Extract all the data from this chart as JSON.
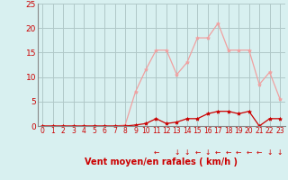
{
  "hours": [
    0,
    1,
    2,
    3,
    4,
    5,
    6,
    7,
    8,
    9,
    10,
    11,
    12,
    13,
    14,
    15,
    16,
    17,
    18,
    19,
    20,
    21,
    22,
    23
  ],
  "rafales": [
    0,
    0,
    0,
    0,
    0,
    0,
    0,
    0,
    0.2,
    7,
    11.5,
    15.5,
    15.5,
    10.5,
    13,
    18,
    18,
    21,
    15.5,
    15.5,
    15.5,
    8.5,
    11,
    5.5
  ],
  "moyen": [
    0,
    0,
    0,
    0,
    0,
    0,
    0,
    0,
    0,
    0.2,
    0.5,
    1.5,
    0.5,
    0.8,
    1.5,
    1.5,
    2.5,
    3,
    3,
    2.5,
    3,
    0,
    1.5,
    1.5
  ],
  "rafales_color": "#f0a0a0",
  "moyen_color": "#cc0000",
  "bg_color": "#d8f0f0",
  "grid_color": "#b0c8c8",
  "xlabel": "Vent moyen/en rafales ( km/h )",
  "xlabel_color": "#cc0000",
  "tick_color": "#cc0000",
  "ylim": [
    0,
    25
  ],
  "yticks": [
    0,
    5,
    10,
    15,
    20,
    25
  ],
  "wind_dirs": [
    "",
    "",
    "",
    "",
    "",
    "",
    "",
    "",
    "",
    "",
    "",
    "<-",
    "",
    "v",
    "v",
    "<-",
    "v",
    "<-",
    "<-",
    "<-",
    "<-",
    "<-",
    "v",
    "v"
  ],
  "arrow_symbols": [
    "",
    "",
    "",
    "",
    "",
    "",
    "",
    "",
    "",
    "",
    "",
    "←",
    "",
    "↓",
    "↓",
    "←",
    "↓",
    "←",
    "←",
    "←",
    "←",
    "←",
    "↓",
    "↓"
  ],
  "arrow_color": "#cc0000"
}
